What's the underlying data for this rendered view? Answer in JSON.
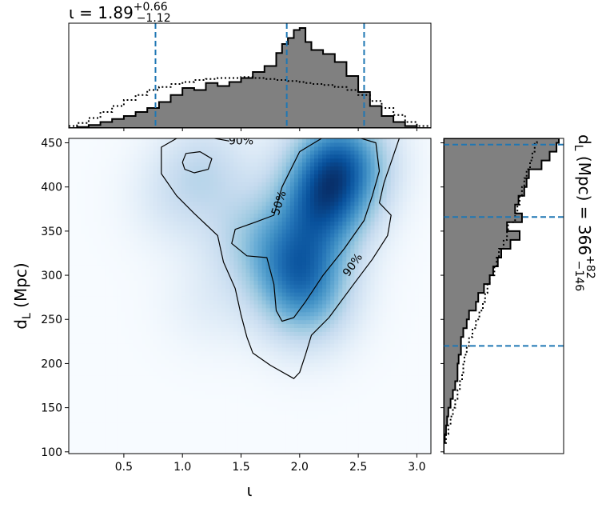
{
  "chart_data": [
    {
      "type": "heatmap",
      "panel": "joint",
      "xlabel": "ι",
      "ylabel_main": "d",
      "ylabel_sub": "L",
      "ylabel_unit": " (Mpc)",
      "xlim": [
        0.03,
        3.12
      ],
      "ylim": [
        98,
        455
      ],
      "xticks": [
        0.5,
        1.0,
        1.5,
        2.0,
        2.5,
        3.0
      ],
      "xtick_labels": [
        "0.5",
        "1.0",
        "1.5",
        "2.0",
        "2.5",
        "3.0"
      ],
      "yticks": [
        100,
        150,
        200,
        250,
        300,
        350,
        400,
        450
      ],
      "ytick_labels": [
        "100",
        "150",
        "200",
        "250",
        "300",
        "350",
        "400",
        "450"
      ],
      "colormap": "Blues",
      "density_peaks": [
        {
          "x": 2.35,
          "y": 430,
          "w": 1.0
        },
        {
          "x": 2.2,
          "y": 380,
          "w": 0.95
        },
        {
          "x": 2.0,
          "y": 310,
          "w": 0.85
        },
        {
          "x": 2.05,
          "y": 265,
          "w": 0.45
        },
        {
          "x": 1.6,
          "y": 345,
          "w": 0.35
        },
        {
          "x": 1.2,
          "y": 425,
          "w": 0.28
        },
        {
          "x": 0.95,
          "y": 385,
          "w": 0.18
        },
        {
          "x": 1.25,
          "y": 270,
          "w": 0.12
        }
      ],
      "contours": [
        {
          "level_label": "50%",
          "label_pos": {
            "x": 1.82,
            "y": 382
          },
          "label_angle": -72,
          "path": [
            [
              2.68,
              418
            ],
            [
              2.65,
              450
            ],
            [
              2.45,
              458
            ],
            [
              2.2,
              456
            ],
            [
              2.0,
              440
            ],
            [
              1.85,
              400
            ],
            [
              1.78,
              368
            ],
            [
              1.62,
              360
            ],
            [
              1.45,
              352
            ],
            [
              1.42,
              336
            ],
            [
              1.55,
              322
            ],
            [
              1.72,
              320
            ],
            [
              1.78,
              290
            ],
            [
              1.8,
              260
            ],
            [
              1.85,
              248
            ],
            [
              1.95,
              252
            ],
            [
              2.05,
              270
            ],
            [
              2.2,
              300
            ],
            [
              2.38,
              330
            ],
            [
              2.55,
              362
            ],
            [
              2.62,
              390
            ],
            [
              2.68,
              418
            ]
          ]
        },
        {
          "level_label": "50%",
          "label_pos": null,
          "path": [
            [
              1.0,
              428
            ],
            [
              1.03,
              438
            ],
            [
              1.15,
              440
            ],
            [
              1.25,
              432
            ],
            [
              1.22,
              420
            ],
            [
              1.1,
              416
            ],
            [
              1.02,
              420
            ],
            [
              1.0,
              428
            ]
          ]
        },
        {
          "level_label": "90%",
          "label_pos": {
            "x": 2.45,
            "y": 312
          },
          "label_angle": -55,
          "path": [
            [
              1.4,
              452
            ],
            [
              1.15,
              458
            ],
            [
              0.95,
              455
            ],
            [
              0.82,
              445
            ],
            [
              0.82,
              415
            ],
            [
              0.95,
              390
            ],
            [
              1.1,
              370
            ],
            [
              1.3,
              345
            ],
            [
              1.35,
              315
            ],
            [
              1.45,
              285
            ],
            [
              1.5,
              255
            ],
            [
              1.55,
              230
            ],
            [
              1.6,
              212
            ],
            [
              1.75,
              198
            ],
            [
              1.95,
              183
            ],
            [
              2.0,
              190
            ],
            [
              2.05,
              210
            ],
            [
              2.1,
              232
            ],
            [
              2.25,
              252
            ],
            [
              2.45,
              288
            ],
            [
              2.62,
              318
            ],
            [
              2.75,
              345
            ],
            [
              2.78,
              368
            ],
            [
              2.68,
              382
            ],
            [
              2.72,
              405
            ],
            [
              2.78,
              428
            ],
            [
              2.85,
              455
            ]
          ]
        }
      ],
      "top_label_90": {
        "text": "90%",
        "x": 1.5,
        "y": 448
      }
    },
    {
      "type": "area",
      "panel": "top_marginal",
      "title_param": "ι",
      "title_value": "1.89",
      "title_upper": "+0.66",
      "title_lower": "−1.12",
      "xlim": [
        0.03,
        3.12
      ],
      "bins_x": [
        0.03,
        0.1,
        0.2,
        0.3,
        0.4,
        0.5,
        0.6,
        0.7,
        0.8,
        0.9,
        1.0,
        1.1,
        1.2,
        1.3,
        1.4,
        1.5,
        1.6,
        1.7,
        1.8,
        1.85,
        1.9,
        1.95,
        2.0,
        2.05,
        2.1,
        2.2,
        2.3,
        2.4,
        2.5,
        2.6,
        2.7,
        2.8,
        2.9,
        3.0,
        3.12
      ],
      "filled_values": [
        0.0,
        0.01,
        0.03,
        0.06,
        0.09,
        0.12,
        0.16,
        0.2,
        0.26,
        0.33,
        0.4,
        0.38,
        0.45,
        0.42,
        0.46,
        0.5,
        0.56,
        0.62,
        0.75,
        0.84,
        0.9,
        0.98,
        1.0,
        0.86,
        0.78,
        0.74,
        0.66,
        0.52,
        0.36,
        0.22,
        0.12,
        0.06,
        0.02,
        0.0
      ],
      "prior_values": [
        0.02,
        0.05,
        0.1,
        0.16,
        0.22,
        0.28,
        0.33,
        0.38,
        0.41,
        0.44,
        0.46,
        0.48,
        0.49,
        0.5,
        0.5,
        0.51,
        0.5,
        0.49,
        0.48,
        0.48,
        0.47,
        0.47,
        0.46,
        0.45,
        0.44,
        0.43,
        0.41,
        0.38,
        0.33,
        0.27,
        0.2,
        0.13,
        0.06,
        0.02
      ],
      "quantile_lines": [
        0.77,
        1.89,
        2.55
      ]
    },
    {
      "type": "area",
      "panel": "right_marginal",
      "label_param_main": "d",
      "label_param_sub": "L",
      "label_unit": " (Mpc)",
      "label_value": "366",
      "label_upper": "+82",
      "label_lower": "−146",
      "ylim": [
        98,
        455
      ],
      "bins_y": [
        98,
        110,
        120,
        130,
        140,
        150,
        160,
        170,
        180,
        190,
        200,
        210,
        220,
        230,
        240,
        250,
        260,
        270,
        280,
        290,
        300,
        310,
        320,
        330,
        340,
        350,
        360,
        370,
        380,
        390,
        400,
        410,
        420,
        430,
        440,
        450,
        455
      ],
      "filled_values": [
        0.0,
        0.01,
        0.02,
        0.03,
        0.04,
        0.06,
        0.08,
        0.1,
        0.12,
        0.12,
        0.13,
        0.15,
        0.15,
        0.17,
        0.2,
        0.22,
        0.28,
        0.3,
        0.35,
        0.4,
        0.43,
        0.47,
        0.5,
        0.58,
        0.66,
        0.55,
        0.68,
        0.62,
        0.65,
        0.7,
        0.72,
        0.74,
        0.85,
        0.92,
        0.98,
        1.0
      ],
      "prior_values": [
        0.0,
        0.02,
        0.04,
        0.06,
        0.08,
        0.1,
        0.12,
        0.14,
        0.16,
        0.17,
        0.18,
        0.2,
        0.22,
        0.25,
        0.28,
        0.31,
        0.34,
        0.36,
        0.38,
        0.4,
        0.44,
        0.46,
        0.48,
        0.52,
        0.55,
        0.56,
        0.62,
        0.64,
        0.66,
        0.68,
        0.7,
        0.72,
        0.75,
        0.77,
        0.79,
        0.81
      ],
      "quantile_lines": [
        220,
        366,
        448
      ]
    }
  ],
  "colors": {
    "hist_fill": "#808080",
    "hist_edge": "#000000",
    "quantile": "#1f77b4",
    "contour": "#000000"
  }
}
